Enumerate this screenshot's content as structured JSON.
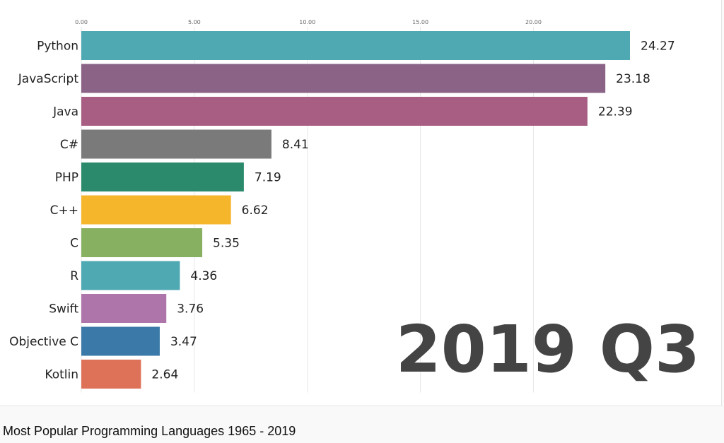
{
  "caption": "Most Popular Programming Languages 1965 - 2019",
  "chart_data": {
    "type": "bar",
    "orientation": "horizontal",
    "period": "2019 Q3",
    "xlim": [
      0,
      24.27
    ],
    "x_ticks": [
      "0.00",
      "5.00",
      "10.00",
      "15.00",
      "20.00"
    ],
    "x_tick_values": [
      0,
      5,
      10,
      15,
      20
    ],
    "grid": true,
    "bars": [
      {
        "label": "Python",
        "value": 24.27,
        "value_label": "24.27",
        "color": "#4fa9b3"
      },
      {
        "label": "JavaScript",
        "value": 23.18,
        "value_label": "23.18",
        "color": "#8a6387"
      },
      {
        "label": "Java",
        "value": 22.39,
        "value_label": "22.39",
        "color": "#a85e82"
      },
      {
        "label": "C#",
        "value": 8.41,
        "value_label": "8.41",
        "color": "#7a7a7a"
      },
      {
        "label": "PHP",
        "value": 7.19,
        "value_label": "7.19",
        "color": "#2a8a6b"
      },
      {
        "label": "C++",
        "value": 6.62,
        "value_label": "6.62",
        "color": "#f6b62c"
      },
      {
        "label": "C",
        "value": 5.35,
        "value_label": "5.35",
        "color": "#88b061"
      },
      {
        "label": "R",
        "value": 4.36,
        "value_label": "4.36",
        "color": "#4fa9b3"
      },
      {
        "label": "Swift",
        "value": 3.76,
        "value_label": "3.76",
        "color": "#ae75aa"
      },
      {
        "label": "Objective C",
        "value": 3.47,
        "value_label": "3.47",
        "color": "#3b79a8"
      },
      {
        "label": "Kotlin",
        "value": 2.64,
        "value_label": "2.64",
        "color": "#de7259"
      }
    ]
  }
}
